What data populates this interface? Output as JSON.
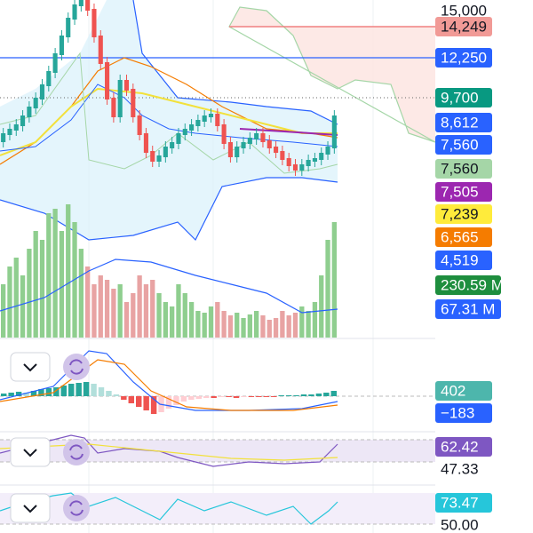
{
  "price_scale": {
    "labels": [
      {
        "text": "15,000",
        "color": null
      },
      {
        "text": "14,249",
        "color": "#f19a96"
      },
      {
        "text": "12,250",
        "color": "#2962ff"
      },
      {
        "text": "9,700",
        "color": "#089981"
      },
      {
        "text": "8,612",
        "color": "#2962ff"
      },
      {
        "text": "7,560",
        "color": "#2962ff"
      },
      {
        "text": "7,560",
        "color": "#a5d6a7"
      },
      {
        "text": "7,505",
        "color": "#9c27b0"
      },
      {
        "text": "7,239",
        "color": "#ffeb3b"
      },
      {
        "text": "6,565",
        "color": "#f57c00"
      },
      {
        "text": "4,519",
        "color": "#2962ff"
      },
      {
        "text": "230.59 M",
        "color": "#1e8e3e"
      },
      {
        "text": "67.31 M",
        "color": "#2962ff"
      },
      {
        "text": "402",
        "color": "#4db6ac"
      },
      {
        "text": "−183",
        "color": "#2962ff"
      },
      {
        "text": "62.42",
        "color": "#7e57c2"
      },
      {
        "text": "47.33",
        "color": null
      },
      {
        "text": "73.47",
        "color": "#26c6da"
      },
      {
        "text": "50.00",
        "color": null
      }
    ]
  }
}
